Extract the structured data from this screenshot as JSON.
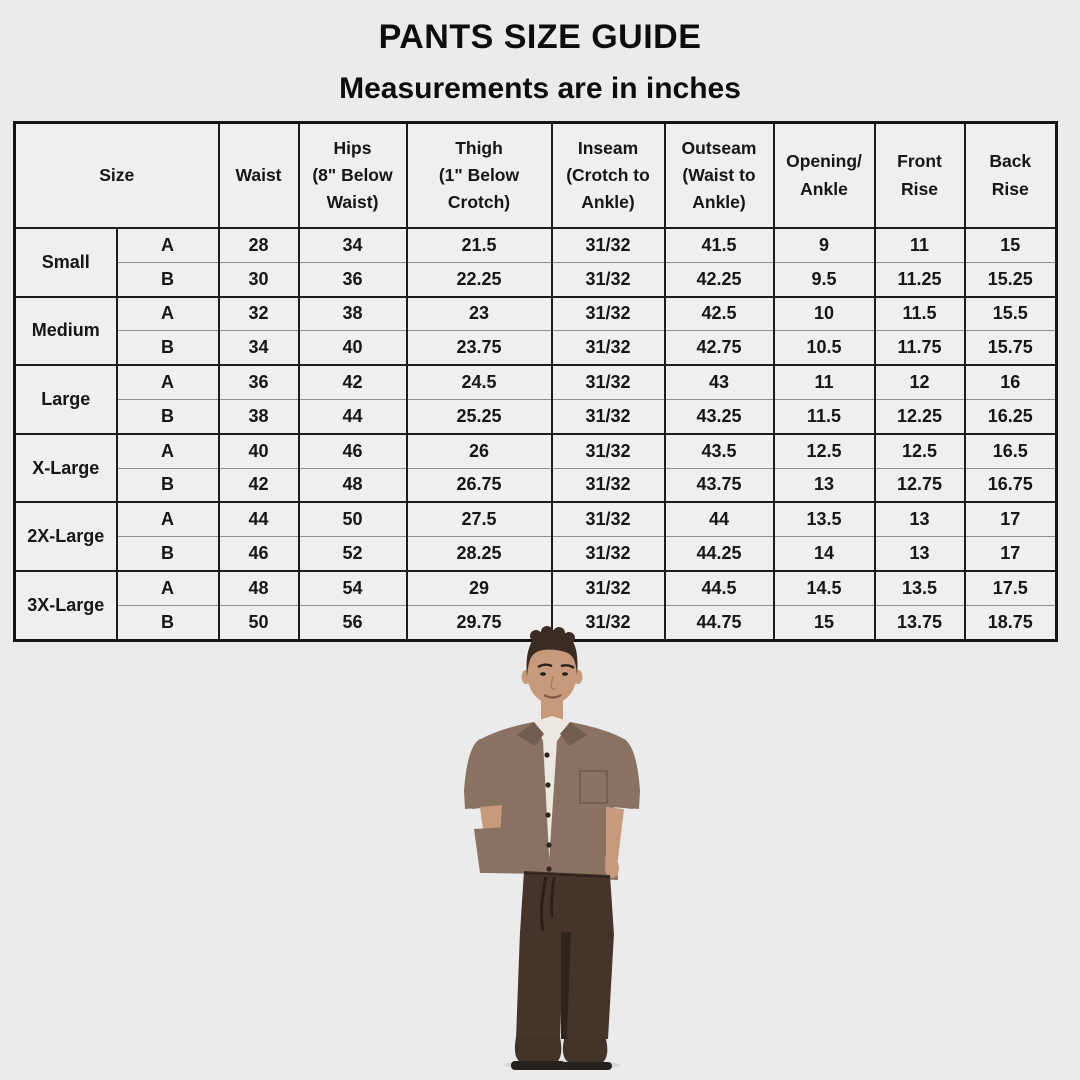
{
  "page": {
    "title": "PANTS SIZE GUIDE",
    "subtitle": "Measurements are in inches"
  },
  "size_table": {
    "headers": {
      "size": "Size",
      "waist": "Waist",
      "hips": "Hips\n(8\" Below\nWaist)",
      "thigh": "Thigh\n(1\" Below\nCrotch)",
      "inseam": "Inseam\n(Crotch to\nAnkle)",
      "outseam": "Outseam\n(Waist to\nAnkle)",
      "opening_ankle": "Opening/\nAnkle",
      "front_rise": "Front\nRise",
      "back_rise": "Back\nRise"
    },
    "groups": [
      {
        "size": "Small",
        "variants": [
          {
            "label": "A",
            "values": [
              "28",
              "34",
              "21.5",
              "31/32",
              "41.5",
              "9",
              "11",
              "15"
            ]
          },
          {
            "label": "B",
            "values": [
              "30",
              "36",
              "22.25",
              "31/32",
              "42.25",
              "9.5",
              "11.25",
              "15.25"
            ]
          }
        ]
      },
      {
        "size": "Medium",
        "variants": [
          {
            "label": "A",
            "values": [
              "32",
              "38",
              "23",
              "31/32",
              "42.5",
              "10",
              "11.5",
              "15.5"
            ]
          },
          {
            "label": "B",
            "values": [
              "34",
              "40",
              "23.75",
              "31/32",
              "42.75",
              "10.5",
              "11.75",
              "15.75"
            ]
          }
        ]
      },
      {
        "size": "Large",
        "variants": [
          {
            "label": "A",
            "values": [
              "36",
              "42",
              "24.5",
              "31/32",
              "43",
              "11",
              "12",
              "16"
            ]
          },
          {
            "label": "B",
            "values": [
              "38",
              "44",
              "25.25",
              "31/32",
              "43.25",
              "11.5",
              "12.25",
              "16.25"
            ]
          }
        ]
      },
      {
        "size": "X-Large",
        "variants": [
          {
            "label": "A",
            "values": [
              "40",
              "46",
              "26",
              "31/32",
              "43.5",
              "12.5",
              "12.5",
              "16.5"
            ]
          },
          {
            "label": "B",
            "values": [
              "42",
              "48",
              "26.75",
              "31/32",
              "43.75",
              "13",
              "12.75",
              "16.75"
            ]
          }
        ]
      },
      {
        "size": "2X-Large",
        "variants": [
          {
            "label": "A",
            "values": [
              "44",
              "50",
              "27.5",
              "31/32",
              "44",
              "13.5",
              "13",
              "17"
            ]
          },
          {
            "label": "B",
            "values": [
              "46",
              "52",
              "28.25",
              "31/32",
              "44.25",
              "14",
              "13",
              "17"
            ]
          }
        ]
      },
      {
        "size": "3X-Large",
        "variants": [
          {
            "label": "A",
            "values": [
              "48",
              "54",
              "29",
              "31/32",
              "44.5",
              "14.5",
              "13.5",
              "17.5"
            ]
          },
          {
            "label": "B",
            "values": [
              "50",
              "56",
              "29.75",
              "31/32",
              "44.75",
              "15",
              "13.75",
              "18.75"
            ]
          }
        ]
      }
    ]
  },
  "figure": {
    "colors": {
      "hair": "#3a2c22",
      "skin": "#c79a7c",
      "tank": "#ece8df",
      "jacket": "#8a7263",
      "jacket_dark": "#735d50",
      "pants": "#46332a",
      "pants_dark": "#31241d",
      "shoes": "#433327",
      "soles": "#26211c"
    },
    "page_background": "#ebebeb",
    "table_cell_background": "#f1efed",
    "table_border_color": "#1c1c1c"
  }
}
